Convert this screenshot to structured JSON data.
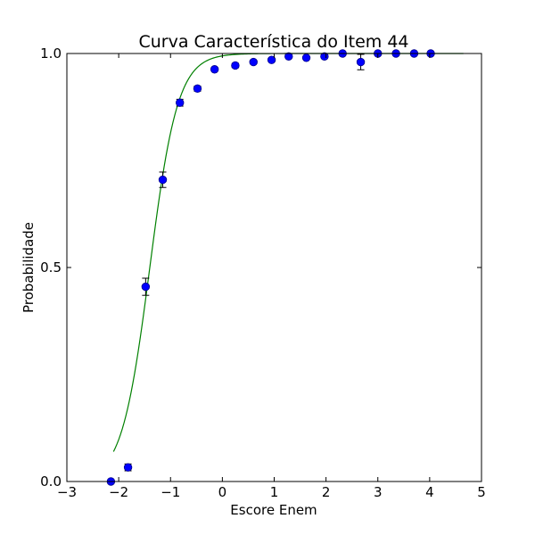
{
  "chart_data": {
    "type": "scatter",
    "title": "Curva Característica do Item 44",
    "xlabel": "Escore Enem",
    "ylabel": "Probabilidade",
    "xlim": [
      -3,
      5
    ],
    "ylim": [
      0.0,
      1.0
    ],
    "x_ticks": [
      -3,
      -2,
      -1,
      0,
      1,
      2,
      3,
      4,
      5
    ],
    "x_tick_labels": [
      "−3",
      "−2",
      "−1",
      "0",
      "1",
      "2",
      "3",
      "4",
      "5"
    ],
    "y_ticks": [
      0.0,
      0.5,
      1.0
    ],
    "y_tick_labels": [
      "0.0",
      "0.5",
      "1.0"
    ],
    "grid": false,
    "colors": {
      "points": "#0000ff",
      "curve": "#008000",
      "errorbars": "#000000"
    },
    "series": [
      {
        "kind": "points",
        "x": [
          -2.15,
          -1.82,
          -1.48,
          -1.15,
          -0.82,
          -0.48,
          -0.15,
          0.25,
          0.6,
          0.95,
          1.28,
          1.62,
          1.97,
          2.32,
          2.67,
          3.0,
          3.35,
          3.7,
          4.02
        ],
        "y": [
          0.0,
          0.033,
          0.455,
          0.705,
          0.885,
          0.918,
          0.963,
          0.972,
          0.98,
          0.985,
          0.993,
          0.99,
          0.993,
          1.0,
          0.98,
          1.0,
          1.0,
          1.0,
          1.0
        ],
        "error": [
          0.0,
          0.008,
          0.02,
          0.018,
          0.008,
          0.006,
          0.004,
          0.005,
          0.004,
          0.004,
          0.003,
          0.003,
          0.003,
          0.002,
          0.018,
          0.002,
          0.002,
          0.002,
          0.002
        ]
      },
      {
        "kind": "curve",
        "model": "logistic",
        "discrimination": 3.7,
        "difficulty": -1.4,
        "x_range": [
          -2.1,
          4.65
        ]
      }
    ]
  }
}
